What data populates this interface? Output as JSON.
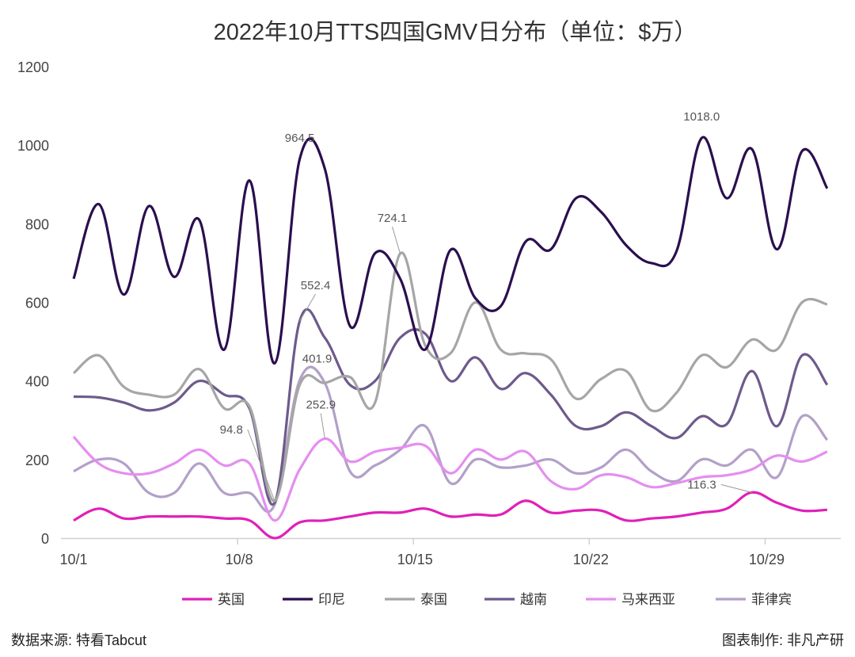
{
  "chart_data": {
    "type": "line",
    "title": "2022年10月TTS四国GMV日分布（单位：$万）",
    "xlabel": "",
    "ylabel": "",
    "ylim": [
      0,
      1200
    ],
    "yticks": [
      "0",
      "200",
      "400",
      "600",
      "800",
      "1000",
      "1200"
    ],
    "x": [
      "10/1",
      "10/2",
      "10/3",
      "10/4",
      "10/5",
      "10/6",
      "10/7",
      "10/8",
      "10/9",
      "10/10",
      "10/11",
      "10/12",
      "10/13",
      "10/14",
      "10/15",
      "10/16",
      "10/17",
      "10/18",
      "10/19",
      "10/20",
      "10/21",
      "10/22",
      "10/23",
      "10/24",
      "10/25",
      "10/26",
      "10/27",
      "10/28",
      "10/29",
      "10/30",
      "10/31"
    ],
    "xticks": [
      {
        "label": "10/1",
        "index": 0
      },
      {
        "label": "10/8",
        "index": 7
      },
      {
        "label": "10/15",
        "index": 14
      },
      {
        "label": "10/22",
        "index": 21
      },
      {
        "label": "10/29",
        "index": 28
      }
    ],
    "grid": false,
    "legend_position": "bottom",
    "series": [
      {
        "name": "英国",
        "color": "#e020b8",
        "values": [
          45,
          75,
          50,
          55,
          55,
          55,
          50,
          45,
          0,
          40,
          45,
          55,
          65,
          65,
          75,
          55,
          60,
          60,
          95,
          65,
          70,
          70,
          45,
          50,
          55,
          65,
          75,
          116.3,
          90,
          70,
          72
        ]
      },
      {
        "name": "印尼",
        "color": "#2a0f4f",
        "values": [
          660,
          850,
          620,
          845,
          665,
          810,
          480,
          910,
          445,
          964.5,
          940,
          540,
          725,
          660,
          480,
          733,
          610,
          590,
          755,
          735,
          865,
          830,
          745,
          700,
          730,
          1018.0,
          865,
          990,
          735,
          985,
          890
        ]
      },
      {
        "name": "泰国",
        "color": "#a6a6a6",
        "values": [
          420,
          465,
          385,
          365,
          365,
          430,
          330,
          335,
          94.8,
          390,
          395,
          410,
          345,
          724.1,
          490,
          470,
          600,
          480,
          470,
          455,
          355,
          405,
          425,
          325,
          370,
          465,
          435,
          505,
          480,
          600,
          595
        ]
      },
      {
        "name": "越南",
        "color": "#6e5a8c",
        "values": [
          360,
          358,
          345,
          325,
          345,
          400,
          365,
          330,
          90,
          552.4,
          510,
          390,
          400,
          510,
          520,
          400,
          460,
          380,
          420,
          365,
          285,
          285,
          320,
          285,
          255,
          310,
          290,
          425,
          285,
          465,
          390
        ]
      },
      {
        "name": "马来西亚",
        "color": "#e58ef0",
        "values": [
          258,
          190,
          165,
          165,
          190,
          225,
          185,
          190,
          45,
          175,
          252.9,
          195,
          220,
          230,
          235,
          165,
          225,
          200,
          220,
          145,
          125,
          160,
          155,
          130,
          140,
          155,
          160,
          175,
          210,
          195,
          220
        ]
      },
      {
        "name": "菲律宾",
        "color": "#b3a0c8",
        "values": [
          170,
          200,
          190,
          115,
          115,
          190,
          115,
          115,
          85,
          401.9,
          395,
          170,
          185,
          225,
          285,
          140,
          200,
          180,
          185,
          200,
          165,
          180,
          225,
          170,
          145,
          200,
          185,
          225,
          155,
          310,
          250
        ]
      }
    ],
    "annotations": [
      {
        "text": "964.5",
        "series": 1,
        "index": 9
      },
      {
        "text": "1018.0",
        "series": 1,
        "index": 25
      },
      {
        "text": "724.1",
        "series": 2,
        "index": 13
      },
      {
        "text": "94.8",
        "series": 2,
        "index": 8
      },
      {
        "text": "552.4",
        "series": 3,
        "index": 9
      },
      {
        "text": "401.9",
        "series": 5,
        "index": 9
      },
      {
        "text": "252.9",
        "series": 4,
        "index": 10
      },
      {
        "text": "116.3",
        "series": 0,
        "index": 27
      }
    ]
  },
  "footer": {
    "source": "数据来源: 特看Tabcut",
    "credit": "图表制作: 非凡产研"
  }
}
